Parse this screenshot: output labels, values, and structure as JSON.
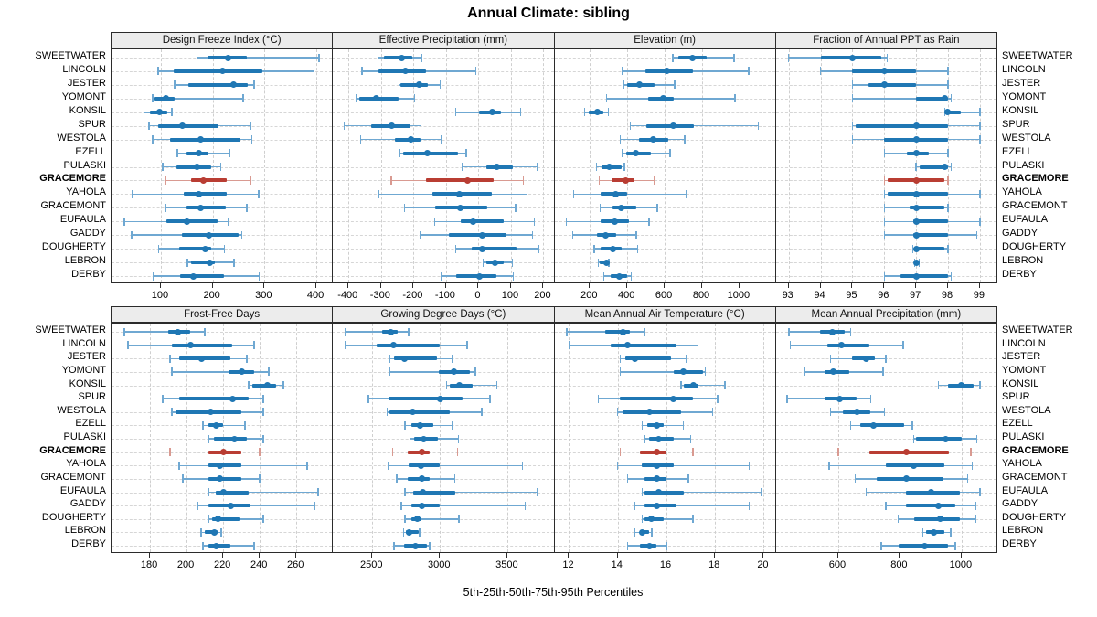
{
  "title": "Annual Climate: sibling",
  "footer_label": "5th-25th-50th-75th-95th Percentiles",
  "stations": [
    "SWEETWATER",
    "LINCOLN",
    "JESTER",
    "YOMONT",
    "KONSIL",
    "SPUR",
    "WESTOLA",
    "EZELL",
    "PULASKI",
    "GRACEMORE",
    "YAHOLA",
    "GRACEMONT",
    "EUFAULA",
    "GADDY",
    "DOUGHERTY",
    "LEBRON",
    "DERBY"
  ],
  "highlight_station": "GRACEMORE",
  "colors": {
    "blue": "#1f77b4",
    "blue_light": "#6fa8d2",
    "red": "#b93d33",
    "red_light": "#d99a91",
    "strip_bg": "#ececec",
    "border": "#2b2b2b",
    "grid": "#d0d0d0"
  },
  "chart_data": [
    {
      "type": "dot-interval",
      "id": "design-freeze-index",
      "row": 0,
      "col": 0,
      "title": "Design Freeze Index (°C)",
      "percentiles": [
        5,
        25,
        50,
        75,
        95
      ],
      "xlim": [
        5,
        432
      ],
      "ticks": [
        100,
        200,
        300,
        400
      ],
      "grid": true,
      "values": {
        "SWEETWATER": [
          170,
          190,
          230,
          265,
          405
        ],
        "LINCOLN": [
          95,
          125,
          220,
          295,
          395
        ],
        "JESTER": [
          127,
          153,
          241,
          267,
          280
        ],
        "YOMONT": [
          84,
          88,
          109,
          127,
          259
        ],
        "KONSIL": [
          68,
          79,
          98,
          112,
          121
        ],
        "SPUR": [
          77,
          95,
          142,
          211,
          273
        ],
        "WESTOLA": [
          84,
          118,
          176,
          253,
          276
        ],
        "EZELL": [
          132,
          149,
          174,
          192,
          232
        ],
        "PULASKI": [
          104,
          130,
          169,
          197,
          216
        ],
        "GRACEMORE": [
          109,
          158,
          183,
          227,
          273
        ],
        "YAHOLA": [
          45,
          144,
          174,
          227,
          289
        ],
        "GRACEMONT": [
          109,
          149,
          176,
          225,
          266
        ],
        "EUFAULA": [
          30,
          110,
          150,
          210,
          230
        ],
        "GADDY": [
          44,
          140,
          193,
          250,
          256
        ],
        "DOUGHERTY": [
          96,
          135,
          185,
          198,
          223
        ],
        "LEBRON": [
          151,
          158,
          195,
          205,
          241
        ],
        "DERBY": [
          86,
          137,
          163,
          222,
          290
        ]
      }
    },
    {
      "type": "dot-interval",
      "id": "effective-precipitation",
      "row": 0,
      "col": 1,
      "title": "Effective Precipitation (mm)",
      "percentiles": [
        5,
        25,
        50,
        75,
        95
      ],
      "xlim": [
        -448,
        234
      ],
      "ticks": [
        -400,
        -300,
        -200,
        -100,
        0,
        100,
        200
      ],
      "grid": true,
      "values": {
        "SWEETWATER": [
          -310,
          -290,
          -235,
          -205,
          -175
        ],
        "LINCOLN": [
          -358,
          -307,
          -225,
          -161,
          -8
        ],
        "JESTER": [
          -245,
          -239,
          -183,
          -155,
          -118
        ],
        "YOMONT": [
          -377,
          -366,
          -315,
          -245,
          -197
        ],
        "KONSIL": [
          -70,
          3,
          42,
          70,
          130
        ],
        "SPUR": [
          -414,
          -330,
          -268,
          -208,
          -177
        ],
        "WESTOLA": [
          -363,
          -256,
          -208,
          -177,
          -115
        ],
        "EZELL": [
          -242,
          -231,
          -158,
          -62,
          -37
        ],
        "PULASKI": [
          -51,
          23,
          56,
          107,
          180
        ],
        "GRACEMORE": [
          -268,
          -161,
          -34,
          48,
          138
        ],
        "YAHOLA": [
          -307,
          -141,
          -59,
          42,
          149
        ],
        "GRACEMONT": [
          -228,
          -132,
          -56,
          28,
          115
        ],
        "EUFAULA": [
          -135,
          -54,
          -17,
          79,
          172
        ],
        "GADDY": [
          -180,
          -90,
          11,
          85,
          166
        ],
        "DOUGHERTY": [
          -70,
          -20,
          11,
          118,
          186
        ],
        "LEBRON": [
          14,
          25,
          51,
          79,
          104
        ],
        "DERBY": [
          -113,
          -68,
          3,
          56,
          107
        ]
      }
    },
    {
      "type": "dot-interval",
      "id": "elevation",
      "row": 0,
      "col": 2,
      "title": "Elevation (m)",
      "percentiles": [
        5,
        25,
        50,
        75,
        95
      ],
      "xlim": [
        10,
        1195
      ],
      "ticks": [
        200,
        400,
        600,
        800,
        1000
      ],
      "grid": true,
      "values": {
        "SWEETWATER": [
          644,
          673,
          751,
          824,
          971
        ],
        "LINCOLN": [
          371,
          498,
          610,
          751,
          1049
        ],
        "JESTER": [
          381,
          400,
          463,
          546,
          654
        ],
        "YOMONT": [
          288,
          512,
          590,
          649,
          976
        ],
        "KONSIL": [
          171,
          195,
          239,
          273,
          298
        ],
        "SPUR": [
          415,
          502,
          644,
          756,
          1102
        ],
        "WESTOLA": [
          361,
          463,
          537,
          620,
          707
        ],
        "EZELL": [
          371,
          395,
          444,
          527,
          629
        ],
        "PULASKI": [
          234,
          263,
          302,
          371,
          385
        ],
        "GRACEMORE": [
          249,
          317,
          390,
          439,
          546
        ],
        "YAHOLA": [
          112,
          259,
          337,
          400,
          717
        ],
        "GRACEMONT": [
          254,
          322,
          366,
          449,
          561
        ],
        "EUFAULA": [
          73,
          259,
          332,
          410,
          517
        ],
        "GADDY": [
          107,
          239,
          283,
          341,
          449
        ],
        "DOUGHERTY": [
          224,
          259,
          322,
          371,
          454
        ],
        "LEBRON": [
          244,
          254,
          288,
          293,
          302
        ],
        "DERBY": [
          273,
          312,
          356,
          400,
          420
        ]
      }
    },
    {
      "type": "dot-interval",
      "id": "fraction-ppt-rain",
      "row": 0,
      "col": 3,
      "title": "Fraction of Annual PPT as Rain",
      "percentiles": [
        5,
        25,
        50,
        75,
        95
      ],
      "xlim": [
        92.6,
        99.55
      ],
      "ticks": [
        93,
        94,
        95,
        96,
        97,
        98,
        99
      ],
      "grid": true,
      "values": {
        "SWEETWATER": [
          93.0,
          94.0,
          95.0,
          95.9,
          96.1
        ],
        "LINCOLN": [
          94.0,
          95.0,
          96.0,
          97.0,
          98.0
        ],
        "JESTER": [
          95.0,
          95.5,
          96.0,
          97.0,
          98.0
        ],
        "YOMONT": [
          95.0,
          97.0,
          97.9,
          98.0,
          98.1
        ],
        "KONSIL": [
          97.9,
          97.95,
          98.0,
          98.4,
          99.0
        ],
        "SPUR": [
          95.0,
          95.1,
          97.0,
          98.0,
          99.0
        ],
        "WESTOLA": [
          95.0,
          96.0,
          97.0,
          98.0,
          99.0
        ],
        "EZELL": [
          96.0,
          96.7,
          97.0,
          97.4,
          98.0
        ],
        "PULASKI": [
          97.0,
          97.1,
          97.9,
          98.0,
          98.1
        ],
        "GRACEMORE": [
          96.0,
          96.1,
          97.0,
          97.9,
          98.0
        ],
        "YAHOLA": [
          96.0,
          96.1,
          97.0,
          98.0,
          99.0
        ],
        "GRACEMONT": [
          96.0,
          96.8,
          97.0,
          97.9,
          98.0
        ],
        "EUFAULA": [
          96.0,
          96.9,
          97.0,
          98.0,
          99.0
        ],
        "GADDY": [
          96.0,
          96.9,
          97.0,
          98.0,
          98.9
        ],
        "DOUGHERTY": [
          96.9,
          96.95,
          97.0,
          97.9,
          98.0
        ],
        "LEBRON": [
          96.95,
          97.0,
          97.0,
          97.05,
          97.1
        ],
        "DERBY": [
          96.0,
          96.5,
          97.0,
          98.0,
          98.1
        ]
      }
    },
    {
      "type": "dot-interval",
      "id": "frost-free-days",
      "row": 1,
      "col": 0,
      "title": "Frost-Free Days",
      "percentiles": [
        5,
        25,
        50,
        75,
        95
      ],
      "xlim": [
        159,
        280
      ],
      "ticks": [
        180,
        200,
        220,
        240,
        260
      ],
      "grid": true,
      "values": {
        "SWEETWATER": [
          166,
          190,
          195,
          202,
          210
        ],
        "LINCOLN": [
          168,
          192,
          202,
          225,
          237
        ],
        "JESTER": [
          191,
          196,
          208,
          224,
          233
        ],
        "YOMONT": [
          192,
          223,
          230,
          237,
          245
        ],
        "KONSIL": [
          234,
          236,
          244,
          249,
          253
        ],
        "SPUR": [
          187,
          196,
          225,
          234,
          242
        ],
        "WESTOLA": [
          192,
          194,
          213,
          230,
          242
        ],
        "EZELL": [
          209,
          212,
          216,
          220,
          232
        ],
        "PULASKI": [
          212,
          215,
          226,
          233,
          242
        ],
        "GRACEMORE": [
          191,
          212,
          220,
          230,
          240
        ],
        "YAHOLA": [
          196,
          212,
          218,
          230,
          266
        ],
        "GRACEMONT": [
          198,
          212,
          218,
          230,
          240
        ],
        "EUFAULA": [
          212,
          216,
          220,
          234,
          272
        ],
        "GADDY": [
          206,
          212,
          224,
          235,
          270
        ],
        "DOUGHERTY": [
          212,
          214,
          217,
          229,
          242
        ],
        "LEBRON": [
          208,
          210,
          215,
          217,
          219
        ],
        "DERBY": [
          209,
          212,
          216,
          224,
          237
        ]
      }
    },
    {
      "type": "dot-interval",
      "id": "growing-degree-days",
      "row": 1,
      "col": 1,
      "title": "Growing Degree Days (°C)",
      "percentiles": [
        5,
        25,
        50,
        75,
        95
      ],
      "xlim": [
        2210,
        3845
      ],
      "ticks": [
        2500,
        3000,
        3500
      ],
      "grid": true,
      "values": {
        "SWEETWATER": [
          2300,
          2570,
          2640,
          2690,
          2770
        ],
        "LINCOLN": [
          2300,
          2530,
          2660,
          3000,
          3200
        ],
        "JESTER": [
          2630,
          2660,
          2740,
          2980,
          3090
        ],
        "YOMONT": [
          2630,
          2990,
          3100,
          3220,
          3260
        ],
        "KONSIL": [
          3050,
          3070,
          3140,
          3240,
          3420
        ],
        "SPUR": [
          2470,
          2620,
          3000,
          3170,
          3370
        ],
        "WESTOLA": [
          2610,
          2630,
          2800,
          3070,
          3310
        ],
        "EZELL": [
          2740,
          2790,
          2850,
          2950,
          3090
        ],
        "PULASKI": [
          2780,
          2810,
          2880,
          2985,
          3135
        ],
        "GRACEMORE": [
          2650,
          2765,
          2865,
          2925,
          3130
        ],
        "YAHOLA": [
          2620,
          2770,
          2860,
          3000,
          3610
        ],
        "GRACEMONT": [
          2680,
          2765,
          2865,
          2925,
          3110
        ],
        "EUFAULA": [
          2740,
          2800,
          2870,
          3110,
          3720
        ],
        "GADDY": [
          2715,
          2790,
          2865,
          3000,
          3630
        ],
        "DOUGHERTY": [
          2740,
          2790,
          2835,
          2860,
          3140
        ],
        "LEBRON": [
          2730,
          2745,
          2770,
          2840,
          2850
        ],
        "DERBY": [
          2660,
          2735,
          2820,
          2905,
          2925
        ]
      }
    },
    {
      "type": "dot-interval",
      "id": "mean-annual-air-temperature",
      "row": 1,
      "col": 2,
      "title": "Mean Annual Air Temperature (°C)",
      "percentiles": [
        5,
        25,
        50,
        75,
        95
      ],
      "xlim": [
        11.4,
        20.5
      ],
      "ticks": [
        12,
        14,
        16,
        18,
        20
      ],
      "grid": true,
      "values": {
        "SWEETWATER": [
          11.9,
          13.5,
          14.2,
          14.5,
          15.1
        ],
        "LINCOLN": [
          12.0,
          13.7,
          14.4,
          16.4,
          17.3
        ],
        "JESTER": [
          14.1,
          14.3,
          14.7,
          16.2,
          16.8
        ],
        "YOMONT": [
          14.1,
          16.3,
          16.7,
          17.5,
          17.6
        ],
        "KONSIL": [
          16.6,
          16.7,
          17.1,
          17.3,
          18.4
        ],
        "SPUR": [
          13.2,
          14.1,
          16.3,
          17.1,
          18.1
        ],
        "WESTOLA": [
          14.0,
          14.2,
          15.3,
          16.6,
          17.9
        ],
        "EZELL": [
          15.0,
          15.2,
          15.6,
          15.9,
          16.7
        ],
        "PULASKI": [
          15.1,
          15.3,
          15.7,
          16.3,
          17.0
        ],
        "GRACEMORE": [
          14.1,
          14.9,
          15.6,
          16.0,
          17.1
        ],
        "YAHOLA": [
          14.0,
          15.0,
          15.6,
          16.3,
          19.4
        ],
        "GRACEMONT": [
          14.4,
          15.1,
          15.6,
          16.0,
          16.9
        ],
        "EUFAULA": [
          15.0,
          15.1,
          15.7,
          16.7,
          19.9
        ],
        "GADDY": [
          14.7,
          15.1,
          15.6,
          16.4,
          19.4
        ],
        "DOUGHERTY": [
          15.0,
          15.1,
          15.4,
          15.9,
          17.1
        ],
        "LEBRON": [
          14.7,
          14.9,
          15.0,
          15.3,
          15.4
        ],
        "DERBY": [
          14.4,
          14.9,
          15.3,
          15.6,
          16.0
        ]
      }
    },
    {
      "type": "dot-interval",
      "id": "mean-annual-precipitation",
      "row": 1,
      "col": 3,
      "title": "Mean Annual Precipitation (mm)",
      "percentiles": [
        5,
        25,
        50,
        75,
        95
      ],
      "xlim": [
        398,
        1116
      ],
      "ticks": [
        600,
        800,
        1000
      ],
      "grid": true,
      "values": {
        "SWEETWATER": [
          440,
          540,
          580,
          620,
          640
        ],
        "LINCOLN": [
          445,
          565,
          610,
          700,
          810
        ],
        "JESTER": [
          575,
          645,
          690,
          720,
          755
        ],
        "YOMONT": [
          490,
          555,
          585,
          635,
          745
        ],
        "KONSIL": [
          925,
          955,
          1000,
          1040,
          1060
        ],
        "SPUR": [
          435,
          555,
          605,
          660,
          705
        ],
        "WESTOLA": [
          575,
          615,
          660,
          705,
          750
        ],
        "EZELL": [
          640,
          670,
          715,
          815,
          840
        ],
        "PULASKI": [
          845,
          852,
          950,
          1000,
          1050
        ],
        "GRACEMORE": [
          600,
          700,
          820,
          960,
          1030
        ],
        "YAHOLA": [
          570,
          755,
          845,
          945,
          1035
        ],
        "GRACEMONT": [
          655,
          725,
          820,
          940,
          1020
        ],
        "EUFAULA": [
          690,
          820,
          900,
          995,
          1060
        ],
        "GADDY": [
          755,
          820,
          925,
          980,
          1045
        ],
        "DOUGHERTY": [
          795,
          845,
          930,
          995,
          1045
        ],
        "LEBRON": [
          875,
          885,
          910,
          945,
          965
        ],
        "DERBY": [
          740,
          795,
          880,
          955,
          980
        ]
      }
    }
  ]
}
